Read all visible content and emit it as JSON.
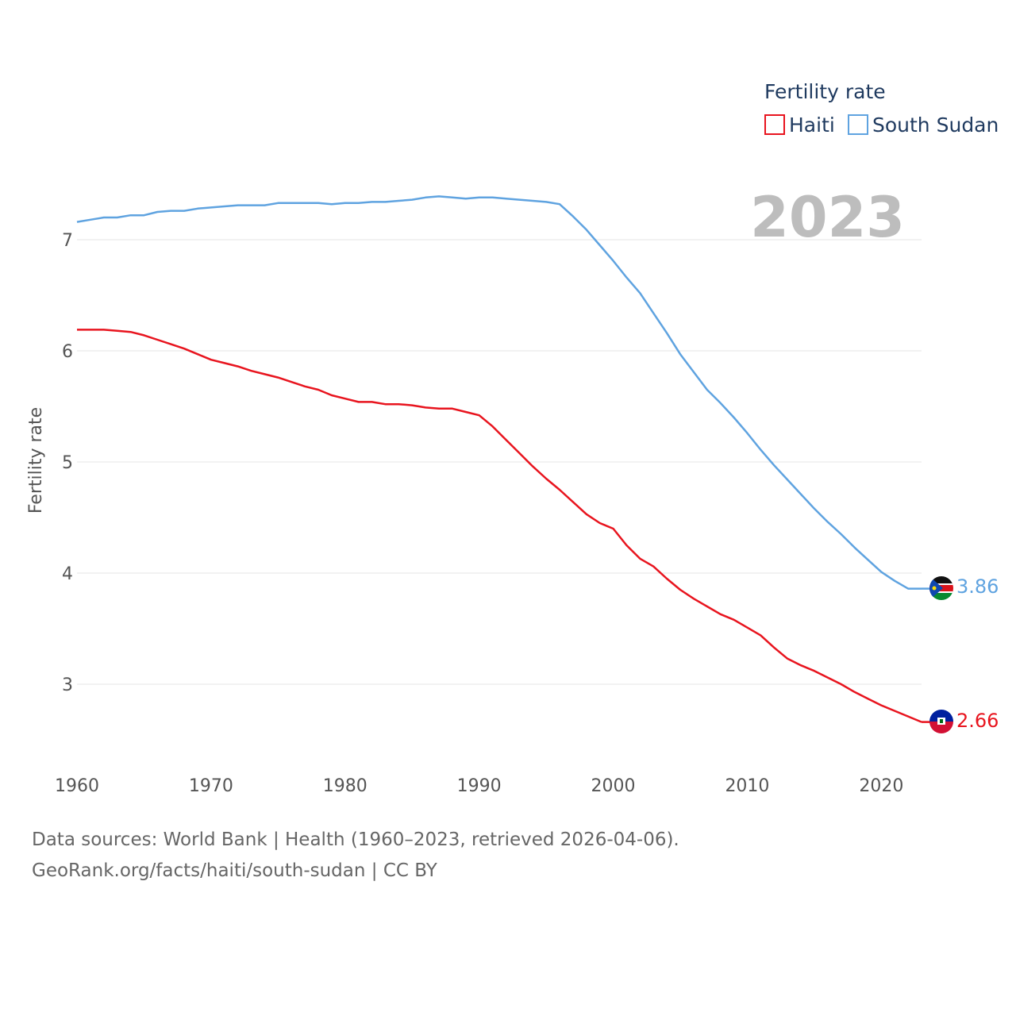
{
  "chart_data": {
    "type": "line",
    "ylabel": "Fertility rate",
    "xlabel": "",
    "year_label": "2023",
    "xlim": [
      1960,
      2023
    ],
    "ylim": [
      2.6,
      7.5
    ],
    "x_ticks": [
      "1960",
      "1970",
      "1980",
      "1990",
      "2000",
      "2010",
      "2020"
    ],
    "y_ticks": [
      "3",
      "4",
      "5",
      "6",
      "7"
    ],
    "legend": {
      "title": "Fertility rate",
      "position": "top-right"
    },
    "x": [
      1960,
      1961,
      1962,
      1963,
      1964,
      1965,
      1966,
      1967,
      1968,
      1969,
      1970,
      1971,
      1972,
      1973,
      1974,
      1975,
      1976,
      1977,
      1978,
      1979,
      1980,
      1981,
      1982,
      1983,
      1984,
      1985,
      1986,
      1987,
      1988,
      1989,
      1990,
      1991,
      1992,
      1993,
      1994,
      1995,
      1996,
      1997,
      1998,
      1999,
      2000,
      2001,
      2002,
      2003,
      2004,
      2005,
      2006,
      2007,
      2008,
      2009,
      2010,
      2011,
      2012,
      2013,
      2014,
      2015,
      2016,
      2017,
      2018,
      2019,
      2020,
      2021,
      2022,
      2023
    ],
    "series": [
      {
        "name": "Haiti",
        "color": "#e8141e",
        "end_label": "2.66",
        "flag": "haiti-flag-icon",
        "values": [
          6.19,
          6.19,
          6.19,
          6.18,
          6.17,
          6.14,
          6.1,
          6.06,
          6.02,
          5.97,
          5.92,
          5.89,
          5.86,
          5.82,
          5.79,
          5.76,
          5.72,
          5.68,
          5.65,
          5.6,
          5.57,
          5.54,
          5.54,
          5.52,
          5.52,
          5.51,
          5.49,
          5.48,
          5.48,
          5.45,
          5.42,
          5.32,
          5.2,
          5.08,
          4.96,
          4.85,
          4.75,
          4.64,
          4.53,
          4.45,
          4.4,
          4.25,
          4.13,
          4.06,
          3.95,
          3.85,
          3.77,
          3.7,
          3.63,
          3.58,
          3.51,
          3.44,
          3.33,
          3.23,
          3.17,
          3.12,
          3.06,
          3.0,
          2.93,
          2.87,
          2.81,
          2.76,
          2.71,
          2.66
        ]
      },
      {
        "name": "South Sudan",
        "color": "#5fa3e0",
        "end_label": "3.86",
        "flag": "south-sudan-flag-icon",
        "values": [
          7.16,
          7.18,
          7.2,
          7.2,
          7.22,
          7.22,
          7.25,
          7.26,
          7.26,
          7.28,
          7.29,
          7.3,
          7.31,
          7.31,
          7.31,
          7.33,
          7.33,
          7.33,
          7.33,
          7.32,
          7.33,
          7.33,
          7.34,
          7.34,
          7.35,
          7.36,
          7.38,
          7.39,
          7.38,
          7.37,
          7.38,
          7.38,
          7.37,
          7.36,
          7.35,
          7.34,
          7.32,
          7.21,
          7.09,
          6.95,
          6.81,
          6.66,
          6.52,
          6.34,
          6.16,
          5.97,
          5.81,
          5.65,
          5.53,
          5.4,
          5.26,
          5.11,
          4.97,
          4.84,
          4.71,
          4.58,
          4.46,
          4.35,
          4.23,
          4.12,
          4.01,
          3.93,
          3.86,
          3.86
        ]
      }
    ]
  },
  "footer": {
    "line1": "Data sources: World Bank | Health (1960–2023, retrieved 2026-04-06).",
    "line2": "GeoRank.org/facts/haiti/south-sudan | CC BY"
  }
}
